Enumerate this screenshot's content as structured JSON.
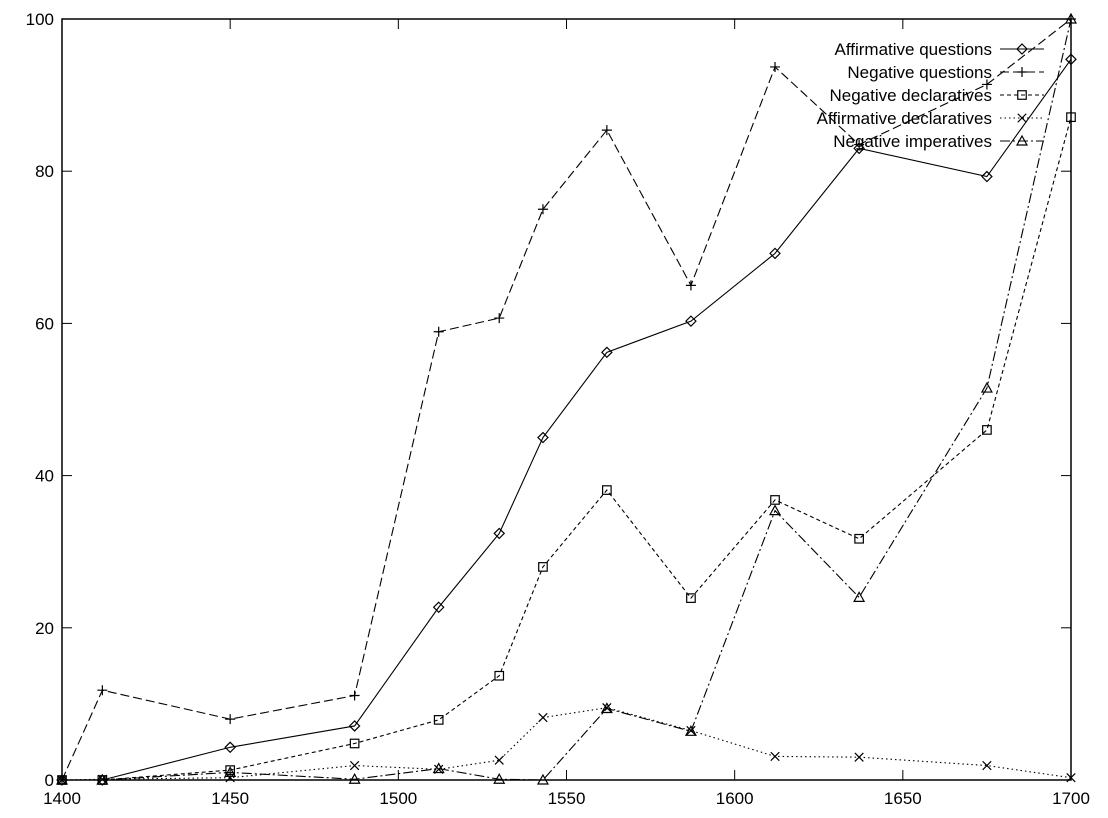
{
  "chart_data": {
    "type": "line",
    "title": "",
    "xlabel": "",
    "ylabel": "",
    "xlim": [
      1400,
      1700
    ],
    "ylim": [
      0,
      100
    ],
    "xticks": [
      1400,
      1450,
      1500,
      1550,
      1600,
      1650,
      1700
    ],
    "yticks": [
      0,
      20,
      40,
      60,
      80,
      100
    ],
    "grid": false,
    "legend_position": "top-right",
    "series": [
      {
        "name": "Affirmative questions",
        "marker": "diamond",
        "dash": "solid",
        "x": [
          1400,
          1412,
          1450,
          1487,
          1512,
          1530,
          1543,
          1562,
          1587,
          1612,
          1637,
          1675,
          1700
        ],
        "y": [
          0,
          0,
          4.3,
          7.1,
          22.7,
          32.4,
          45,
          56.2,
          60.3,
          69.2,
          83,
          79.3,
          94.7
        ]
      },
      {
        "name": "Negative questions",
        "marker": "plus",
        "dash": "dashed",
        "x": [
          1400,
          1412,
          1450,
          1487,
          1512,
          1530,
          1543,
          1562,
          1587,
          1612,
          1637,
          1675,
          1700
        ],
        "y": [
          0,
          11.8,
          8,
          11.1,
          58.9,
          60.7,
          75,
          85.4,
          65,
          93.7,
          83.5,
          91.4,
          100
        ]
      },
      {
        "name": "Negative declaratives",
        "marker": "square",
        "dash": "short-dashed",
        "x": [
          1400,
          1412,
          1450,
          1487,
          1512,
          1530,
          1543,
          1562,
          1587,
          1612,
          1637,
          1675,
          1700
        ],
        "y": [
          0,
          0,
          1.3,
          4.8,
          7.9,
          13.7,
          28,
          38.1,
          23.9,
          36.8,
          31.7,
          46,
          87.1
        ]
      },
      {
        "name": "Affirmative declaratives",
        "marker": "cross",
        "dash": "dotted",
        "x": [
          1400,
          1412,
          1450,
          1487,
          1512,
          1530,
          1543,
          1562,
          1587,
          1612,
          1637,
          1675,
          1700
        ],
        "y": [
          0,
          0.1,
          0.3,
          1.9,
          1.4,
          2.6,
          8.2,
          9.5,
          6.5,
          3.1,
          3,
          1.9,
          0.3
        ]
      },
      {
        "name": "Negative imperatives",
        "marker": "triangle",
        "dash": "dash-dot",
        "x": [
          1400,
          1412,
          1450,
          1487,
          1512,
          1530,
          1543,
          1562,
          1587,
          1612,
          1637,
          1675,
          1700
        ],
        "y": [
          0,
          0,
          1,
          0.1,
          1.5,
          0.1,
          0,
          9.4,
          6.4,
          35.4,
          24,
          51.5,
          100
        ]
      }
    ]
  }
}
